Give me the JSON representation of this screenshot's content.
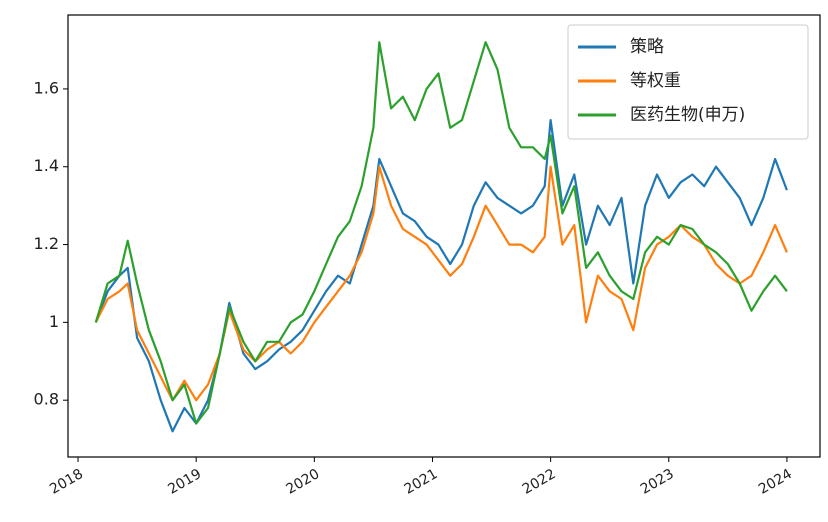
{
  "chart_data": {
    "type": "line",
    "x": [
      2018.15,
      2018.25,
      2018.35,
      2018.42,
      2018.5,
      2018.6,
      2018.7,
      2018.8,
      2018.9,
      2019.0,
      2019.1,
      2019.2,
      2019.28,
      2019.4,
      2019.5,
      2019.6,
      2019.7,
      2019.8,
      2019.9,
      2020.0,
      2020.1,
      2020.2,
      2020.3,
      2020.4,
      2020.5,
      2020.55,
      2020.65,
      2020.75,
      2020.85,
      2020.95,
      2021.05,
      2021.15,
      2021.25,
      2021.35,
      2021.45,
      2021.55,
      2021.65,
      2021.75,
      2021.85,
      2021.95,
      2022.0,
      2022.1,
      2022.2,
      2022.3,
      2022.4,
      2022.5,
      2022.6,
      2022.7,
      2022.8,
      2022.9,
      2023.0,
      2023.1,
      2023.2,
      2023.3,
      2023.4,
      2023.5,
      2023.6,
      2023.7,
      2023.8,
      2023.9,
      2024.0
    ],
    "series": [
      {
        "name": "策略",
        "color": "#1f77b4",
        "values": [
          1.0,
          1.08,
          1.12,
          1.14,
          0.96,
          0.9,
          0.8,
          0.72,
          0.78,
          0.74,
          0.8,
          0.92,
          1.05,
          0.92,
          0.88,
          0.9,
          0.93,
          0.95,
          0.98,
          1.03,
          1.08,
          1.12,
          1.1,
          1.2,
          1.3,
          1.42,
          1.35,
          1.28,
          1.26,
          1.22,
          1.2,
          1.15,
          1.2,
          1.3,
          1.36,
          1.32,
          1.3,
          1.28,
          1.3,
          1.35,
          1.52,
          1.3,
          1.38,
          1.2,
          1.3,
          1.25,
          1.32,
          1.1,
          1.3,
          1.38,
          1.32,
          1.36,
          1.38,
          1.35,
          1.4,
          1.36,
          1.32,
          1.25,
          1.32,
          1.42,
          1.34
        ]
      },
      {
        "name": "等权重",
        "color": "#ff7f0e",
        "values": [
          1.0,
          1.06,
          1.08,
          1.1,
          0.98,
          0.92,
          0.86,
          0.8,
          0.85,
          0.8,
          0.84,
          0.92,
          1.03,
          0.93,
          0.9,
          0.93,
          0.95,
          0.92,
          0.95,
          1.0,
          1.04,
          1.08,
          1.12,
          1.18,
          1.28,
          1.4,
          1.3,
          1.24,
          1.22,
          1.2,
          1.16,
          1.12,
          1.15,
          1.22,
          1.3,
          1.25,
          1.2,
          1.2,
          1.18,
          1.22,
          1.4,
          1.2,
          1.25,
          1.0,
          1.12,
          1.08,
          1.06,
          0.98,
          1.14,
          1.2,
          1.22,
          1.25,
          1.22,
          1.2,
          1.15,
          1.12,
          1.1,
          1.12,
          1.18,
          1.25,
          1.18
        ]
      },
      {
        "name": "医药生物(申万)",
        "color": "#2ca02c",
        "values": [
          1.0,
          1.1,
          1.12,
          1.21,
          1.1,
          0.98,
          0.9,
          0.8,
          0.84,
          0.74,
          0.78,
          0.92,
          1.04,
          0.95,
          0.9,
          0.95,
          0.95,
          1.0,
          1.02,
          1.08,
          1.15,
          1.22,
          1.26,
          1.35,
          1.5,
          1.72,
          1.55,
          1.58,
          1.52,
          1.6,
          1.64,
          1.5,
          1.52,
          1.62,
          1.72,
          1.65,
          1.5,
          1.45,
          1.45,
          1.42,
          1.48,
          1.28,
          1.35,
          1.14,
          1.18,
          1.12,
          1.08,
          1.06,
          1.18,
          1.22,
          1.2,
          1.25,
          1.24,
          1.2,
          1.18,
          1.15,
          1.1,
          1.03,
          1.08,
          1.12,
          1.08
        ]
      }
    ],
    "xlim": [
      2017.915,
      2024.28
    ],
    "xticks": [
      2018,
      2019,
      2020,
      2021,
      2022,
      2023,
      2024
    ],
    "ylim": [
      0.654,
      1.79
    ],
    "yticks": [
      0.8,
      1.0,
      1.2,
      1.4,
      1.6
    ],
    "legend": "upper right"
  }
}
